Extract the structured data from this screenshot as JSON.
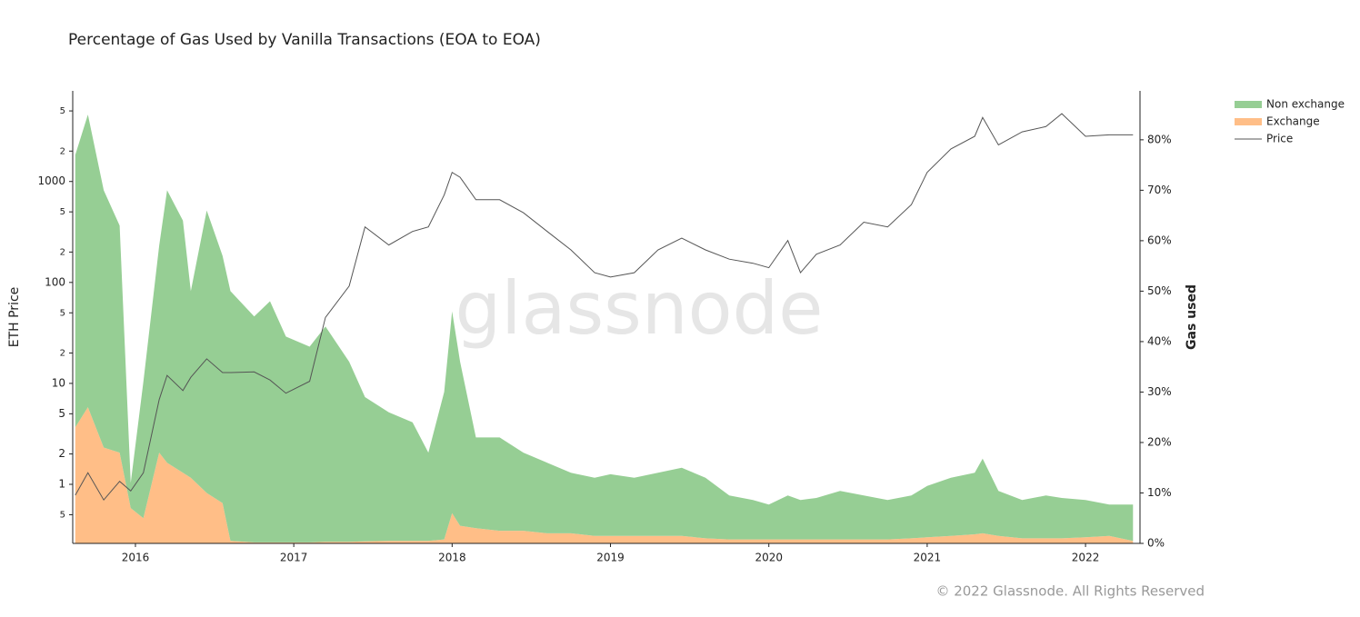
{
  "chart_data": {
    "type": "area",
    "title": "Percentage of Gas Used by Vanilla Transactions (EOA to EOA)",
    "y_label": "ETH Price",
    "y2_label": "Gas used",
    "watermark": "glassnode",
    "footer": "© 2022 Glassnode. All Rights Reserved",
    "legend": "top-right",
    "log_y": true,
    "x": [
      2015.62,
      2015.7,
      2015.8,
      2015.9,
      2015.97,
      2016.05,
      2016.15,
      2016.2,
      2016.3,
      2016.35,
      2016.45,
      2016.55,
      2016.6,
      2016.75,
      2016.85,
      2016.95,
      2017.1,
      2017.2,
      2017.35,
      2017.45,
      2017.6,
      2017.75,
      2017.85,
      2017.95,
      2018.0,
      2018.05,
      2018.15,
      2018.3,
      2018.45,
      2018.6,
      2018.75,
      2018.9,
      2019.0,
      2019.15,
      2019.3,
      2019.45,
      2019.6,
      2019.75,
      2019.9,
      2020.0,
      2020.12,
      2020.2,
      2020.3,
      2020.45,
      2020.6,
      2020.75,
      2020.9,
      2021.0,
      2021.15,
      2021.3,
      2021.35,
      2021.45,
      2021.6,
      2021.75,
      2021.85,
      2022.0,
      2022.15,
      2022.3
    ],
    "xlim": [
      2015.604,
      2022.344
    ],
    "xticks": [
      2016,
      2017,
      2018,
      2019,
      2020,
      2021,
      2022
    ],
    "ylim": [
      0.26,
      7900
    ],
    "yticks": [
      {
        "value": 0.5,
        "label": "5"
      },
      1,
      2,
      5,
      10,
      {
        "value": 20,
        "label": "2"
      },
      {
        "value": 50,
        "label": "5"
      },
      100,
      {
        "value": 200,
        "label": "2"
      },
      {
        "value": 500,
        "label": "5"
      },
      1000,
      {
        "value": 2000,
        "label": "2"
      },
      {
        "value": 5000,
        "label": "5"
      }
    ],
    "y2lim": [
      0,
      89.7
    ],
    "y2ticks": [
      {
        "value": 0,
        "label": "0%"
      },
      {
        "value": 10,
        "label": "10%"
      },
      {
        "value": 20,
        "label": "20%"
      },
      {
        "value": 30,
        "label": "30%"
      },
      {
        "value": 40,
        "label": "40%"
      },
      {
        "value": 50,
        "label": "50%"
      },
      {
        "value": 60,
        "label": "60%"
      },
      {
        "value": 70,
        "label": "70%"
      },
      {
        "value": 80,
        "label": "80%"
      }
    ],
    "series": [
      {
        "name": "Non exchange",
        "color": "#96ce94",
        "axis": "y2",
        "stacked": true,
        "values": [
          54,
          58,
          51,
          45,
          5,
          27,
          41,
          54,
          50,
          37,
          56,
          49,
          49.5,
          44.8,
          47.8,
          40.8,
          38.8,
          42.7,
          35.7,
          28.6,
          25.5,
          23.5,
          17.5,
          29.2,
          40,
          32.5,
          18,
          18.5,
          15.5,
          14,
          12,
          11.5,
          12.2,
          11.5,
          12.5,
          13.5,
          12,
          8.7,
          7.8,
          6.9,
          8.7,
          7.8,
          8.2,
          9.6,
          8.7,
          7.8,
          8.5,
          10.2,
          11.5,
          12.2,
          14.8,
          8.9,
          7.6,
          8.5,
          8,
          7.4,
          6.2,
          7.2
        ]
      },
      {
        "name": "Exchange",
        "color": "#ffbe87",
        "axis": "y2",
        "stacked": true,
        "values": [
          23,
          27,
          19,
          18,
          7,
          5,
          18,
          16,
          14,
          13,
          10,
          8,
          0.5,
          0.2,
          0.2,
          0.2,
          0.2,
          0.3,
          0.3,
          0.4,
          0.5,
          0.5,
          0.5,
          0.8,
          6,
          3.5,
          3,
          2.5,
          2.5,
          2,
          2,
          1.5,
          1.5,
          1.5,
          1.5,
          1.5,
          1,
          0.8,
          0.8,
          0.8,
          0.8,
          0.8,
          0.8,
          0.8,
          0.8,
          0.8,
          1,
          1.2,
          1.5,
          1.8,
          2,
          1.5,
          1,
          1,
          1,
          1.2,
          1.5,
          0.5
        ]
      },
      {
        "name": "Price",
        "color": "#555555",
        "axis": "y",
        "line": true,
        "values": [
          0.78,
          1.3,
          0.7,
          1.07,
          0.86,
          1.3,
          6.9,
          12,
          8.5,
          11.5,
          17.5,
          12.8,
          12.8,
          13,
          10.8,
          8,
          10.5,
          45,
          92,
          355,
          235,
          320,
          355,
          735,
          1230,
          1100,
          660,
          660,
          490,
          320,
          210,
          125,
          113,
          125,
          210,
          275,
          210,
          170,
          155,
          140,
          260,
          125,
          190,
          235,
          395,
          355,
          590,
          1230,
          2100,
          2800,
          4300,
          2300,
          3100,
          3500,
          4700,
          2800,
          2900,
          2900
        ]
      }
    ]
  }
}
